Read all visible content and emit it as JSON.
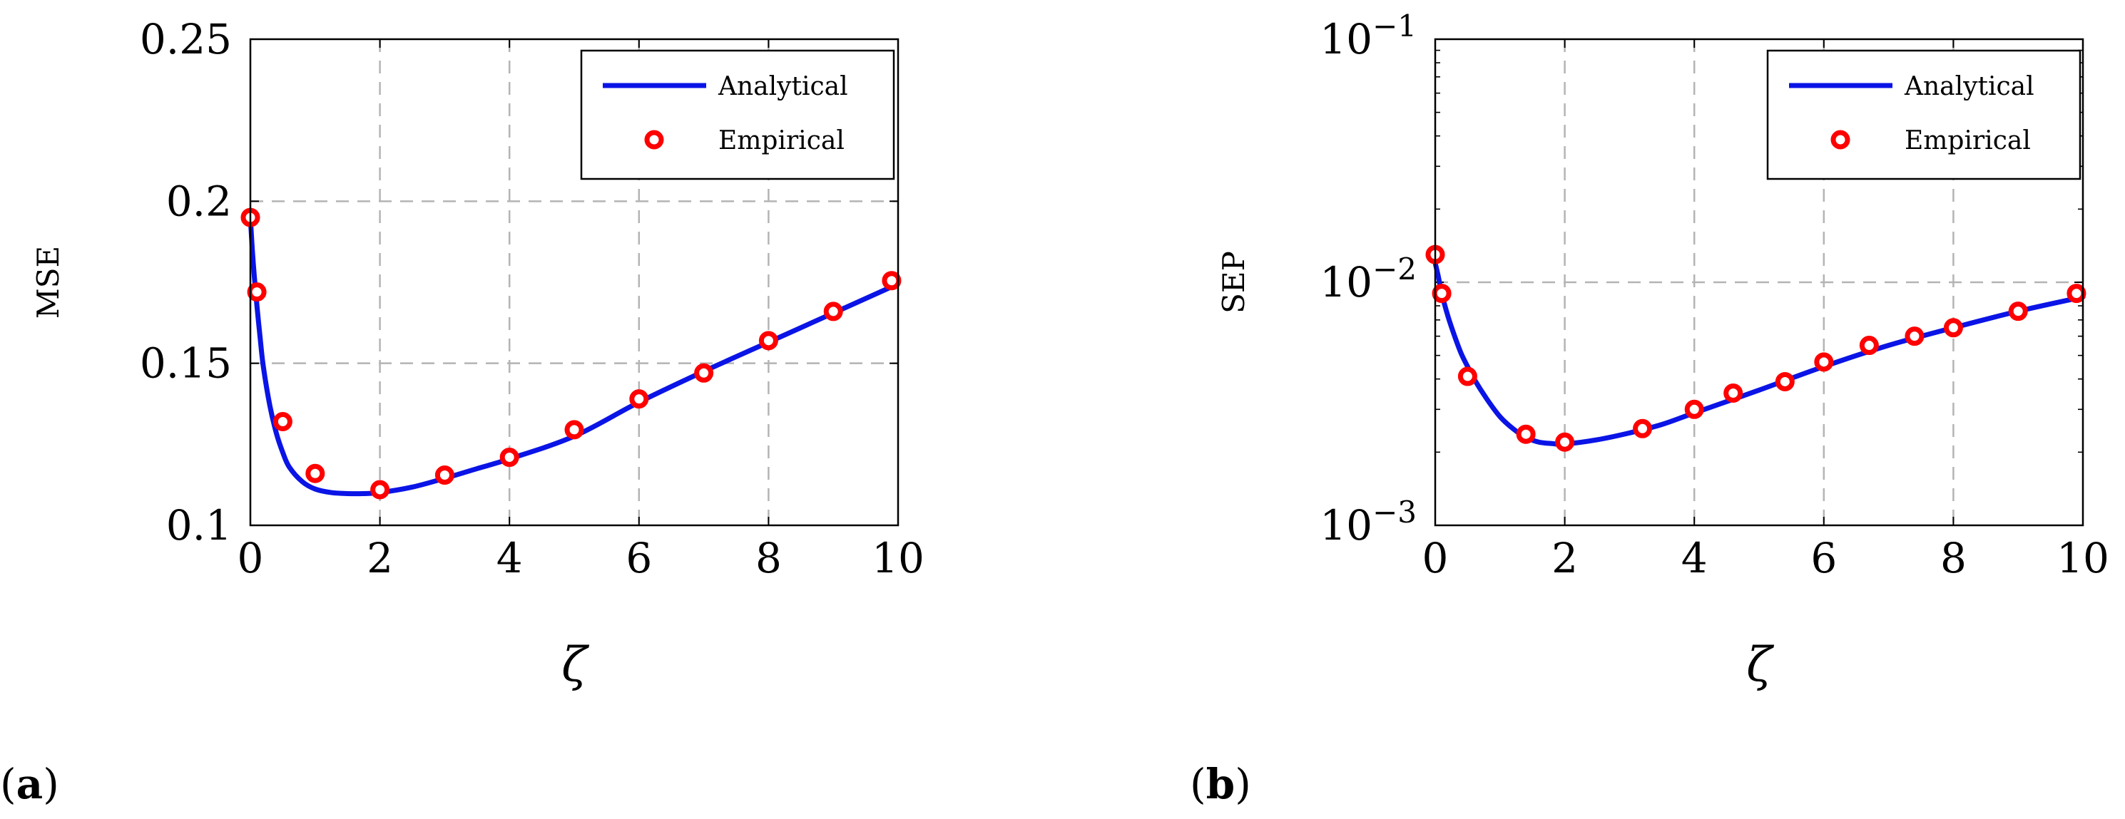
{
  "chart_data": [
    {
      "panel_label": "a",
      "type": "line",
      "yscale": "linear",
      "xlabel": "ζ",
      "ylabel": "MSE",
      "xlim": [
        0,
        10
      ],
      "ylim": [
        0.1,
        0.25
      ],
      "xticks": [
        0,
        2,
        4,
        6,
        8,
        10
      ],
      "xtick_labels": [
        "0",
        "2",
        "4",
        "6",
        "8",
        "10"
      ],
      "yticks": [
        0.1,
        0.15,
        0.2,
        0.25
      ],
      "ytick_labels": [
        "0.1",
        "0.15",
        "0.2",
        "0.25"
      ],
      "grid": true,
      "legend_position": "top-right",
      "series": [
        {
          "name": "Analytical",
          "kind": "line",
          "color": "#0a14e6",
          "x": [
            0,
            0.03,
            0.06,
            0.1,
            0.15,
            0.2,
            0.3,
            0.4,
            0.5,
            0.6,
            0.8,
            1.0,
            1.25,
            1.5,
            1.75,
            2.0,
            2.5,
            3.0,
            3.5,
            4.0,
            5.0,
            6.0,
            7.0,
            8.0,
            9.0,
            10.0
          ],
          "y": [
            0.195,
            0.185,
            0.177,
            0.168,
            0.158,
            0.149,
            0.137,
            0.1285,
            0.1225,
            0.118,
            0.1135,
            0.1112,
            0.1101,
            0.1098,
            0.1098,
            0.1101,
            0.1118,
            0.1145,
            0.1175,
            0.1205,
            0.1275,
            0.138,
            0.1475,
            0.1565,
            0.1655,
            0.1745
          ]
        },
        {
          "name": "Empirical",
          "kind": "markers",
          "color": "#ff0000",
          "x": [
            0,
            0.1,
            0.5,
            1,
            2,
            3,
            4,
            5,
            6,
            7,
            8,
            9,
            9.9
          ],
          "y": [
            0.195,
            0.172,
            0.132,
            0.116,
            0.111,
            0.1155,
            0.121,
            0.1295,
            0.139,
            0.147,
            0.157,
            0.166,
            0.1755
          ]
        }
      ]
    },
    {
      "panel_label": "b",
      "type": "line",
      "yscale": "log",
      "xlabel": "ζ",
      "ylabel": "SEP",
      "xlim": [
        0,
        10
      ],
      "ylim": [
        0.001,
        0.1
      ],
      "xticks": [
        0,
        2,
        4,
        6,
        8,
        10
      ],
      "xtick_labels": [
        "0",
        "2",
        "4",
        "6",
        "8",
        "10"
      ],
      "yticks": [
        0.001,
        0.01,
        0.1
      ],
      "ytick_base": "10",
      "ytick_exponents": [
        "−3",
        "−2",
        "−1"
      ],
      "grid": true,
      "legend_position": "top-right",
      "series": [
        {
          "name": "Analytical",
          "kind": "line",
          "color": "#0a14e6",
          "x": [
            0,
            0.05,
            0.1,
            0.2,
            0.3,
            0.4,
            0.5,
            0.6,
            0.8,
            1.0,
            1.2,
            1.4,
            1.6,
            1.8,
            2.0,
            2.5,
            3.0,
            3.5,
            4.0,
            5.0,
            6.0,
            7.0,
            8.0,
            9.0,
            10.0
          ],
          "y": [
            0.012,
            0.0105,
            0.009,
            0.0072,
            0.006,
            0.0051,
            0.0045,
            0.004,
            0.0033,
            0.0028,
            0.0025,
            0.0023,
            0.0022,
            0.00217,
            0.00216,
            0.00225,
            0.0024,
            0.0026,
            0.0029,
            0.0036,
            0.0045,
            0.0055,
            0.0065,
            0.0076,
            0.0087
          ]
        },
        {
          "name": "Empirical",
          "kind": "markers",
          "color": "#ff0000",
          "x": [
            0,
            0.1,
            0.5,
            1.4,
            2,
            3.2,
            4,
            4.6,
            5.4,
            6,
            6.7,
            7.4,
            8,
            9,
            9.9
          ],
          "y": [
            0.013,
            0.009,
            0.0041,
            0.00237,
            0.0022,
            0.0025,
            0.003,
            0.0035,
            0.0039,
            0.0047,
            0.0055,
            0.006,
            0.0065,
            0.0076,
            0.009
          ]
        }
      ]
    }
  ]
}
